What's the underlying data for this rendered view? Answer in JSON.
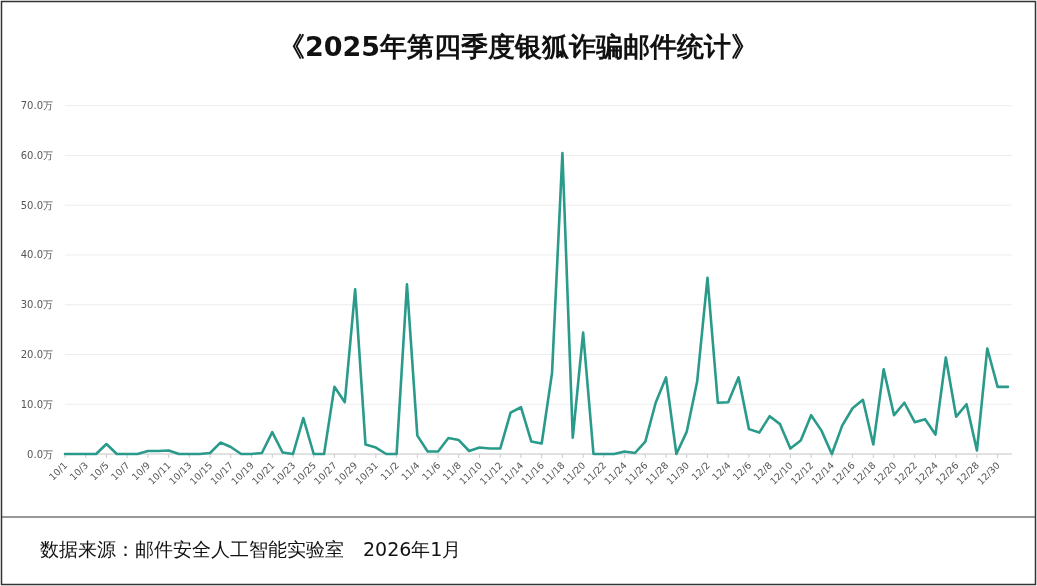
{
  "chart_data": {
    "type": "line",
    "title": "《2025年第四季度银狐诈骗邮件统计》",
    "annotations": [
      "数据来源：邮件安全人工智能实验室　2026年1月"
    ],
    "categories": [
      "10/1",
      null,
      "10/3",
      null,
      "10/5",
      null,
      "10/7",
      null,
      "10/9",
      null,
      "10/11",
      null,
      "10/13",
      null,
      "10/15",
      null,
      "10/17",
      null,
      "10/19",
      null,
      "10/21",
      null,
      "10/23",
      null,
      "10/25",
      null,
      "10/27",
      null,
      "10/29",
      null,
      "10/31",
      null,
      "11/2",
      null,
      "11/4",
      null,
      "11/6",
      null,
      "11/8",
      null,
      "11/10",
      null,
      "11/12",
      null,
      "11/14",
      null,
      "11/16",
      null,
      "11/18",
      null,
      "11/20",
      null,
      "11/22",
      null,
      "11/24",
      null,
      "11/26",
      null,
      "11/28",
      null,
      "11/30",
      null,
      "12/2",
      null,
      "12/4",
      null,
      "12/6",
      null,
      "12/8",
      null,
      "12/10",
      null,
      "12/12",
      null,
      "12/14",
      null,
      "12/16",
      null,
      "12/18",
      null,
      "12/20",
      null,
      "12/22",
      null,
      "12/24",
      null,
      "12/26",
      null,
      "12/28",
      null,
      "12/30",
      null
    ],
    "series": [
      {
        "color": "#2a9a8a",
        "values": [
          0,
          0,
          0,
          0,
          2.0,
          0,
          0,
          0,
          0.6,
          0.6,
          0.7,
          0,
          0,
          0,
          0.2,
          2.3,
          1.4,
          0,
          0,
          0.2,
          4.4,
          0.3,
          0,
          7.2,
          0,
          0,
          13.5,
          10.4,
          33.1,
          1.9,
          1.3,
          0,
          0,
          34.1,
          3.7,
          0.5,
          0.5,
          3.2,
          2.8,
          0.6,
          1.3,
          1.1,
          1.1,
          8.3,
          9.4,
          2.5,
          2.1,
          16.3,
          60.5,
          3.3,
          24.4,
          0,
          0,
          0,
          0.5,
          0.2,
          2.5,
          10.3,
          15.4,
          0,
          4.5,
          14.5,
          35.4,
          10.3,
          10.4,
          15.4,
          5.0,
          4.3,
          7.6,
          6.0,
          1.1,
          2.7,
          7.8,
          4.7,
          0,
          5.7,
          9.2,
          10.9,
          1.9,
          17.0,
          7.8,
          10.3,
          6.4,
          7.0,
          3.9,
          19.4,
          7.5,
          10.0,
          0.7,
          21.2,
          13.5,
          13.5
        ]
      }
    ],
    "ylim": [
      0,
      70
    ],
    "yticks": [
      {
        "value": 0,
        "label": "0.0万"
      },
      {
        "value": 10,
        "label": "10.0万"
      },
      {
        "value": 20,
        "label": "20.0万"
      },
      {
        "value": 30,
        "label": "30.0万"
      },
      {
        "value": 40,
        "label": "40.0万"
      },
      {
        "value": 50,
        "label": "50.0万"
      },
      {
        "value": 60,
        "label": "60.0万"
      },
      {
        "value": 70,
        "label": "70.0万"
      }
    ],
    "grid": "y",
    "marker": "none",
    "line_style": "solid"
  }
}
